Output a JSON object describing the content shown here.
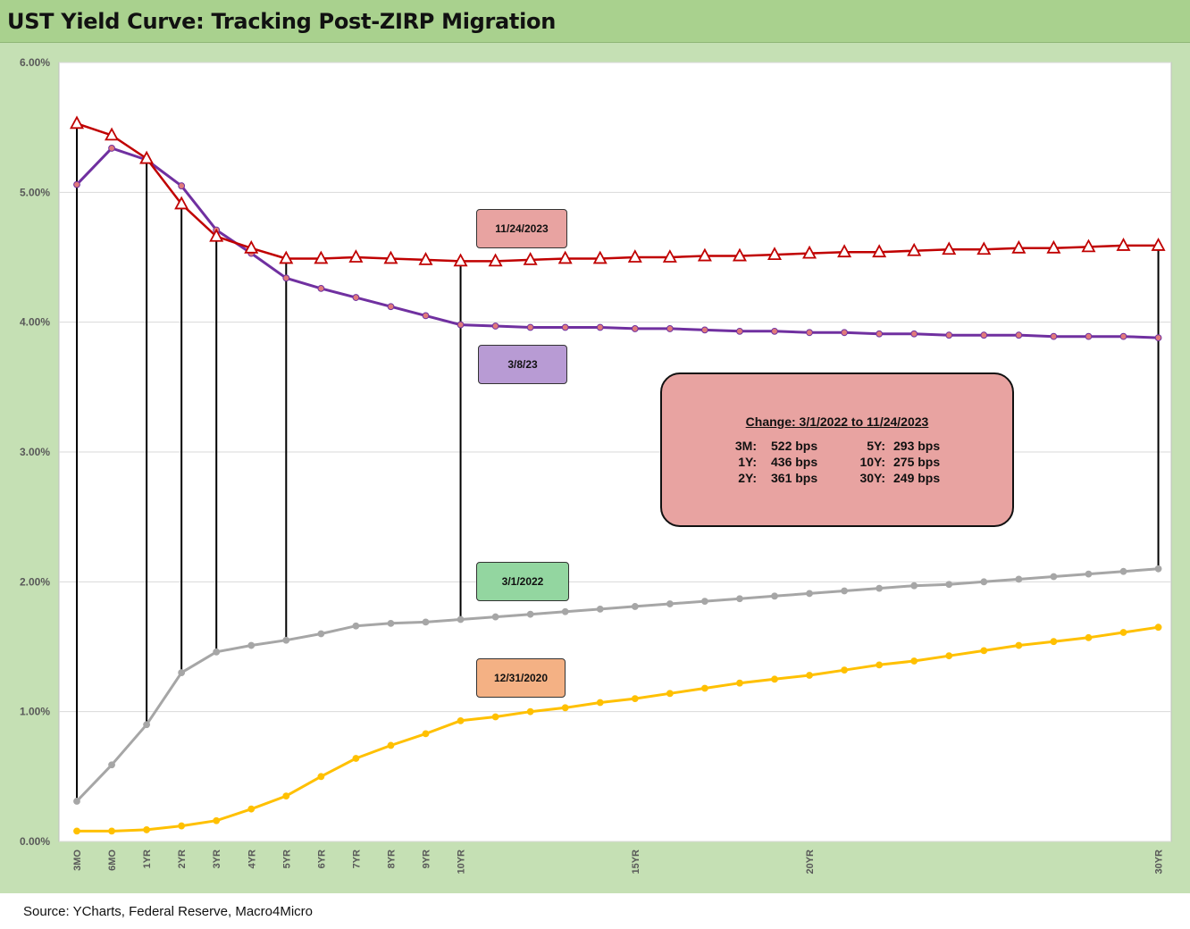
{
  "title": "UST Yield Curve: Tracking Post-ZIRP Migration",
  "source": "Source: YCharts, Federal Reserve, Macro4Micro",
  "chart_data": {
    "type": "line",
    "y_axis": {
      "min": 0,
      "max": 6,
      "ticks": [
        "0.00%",
        "1.00%",
        "2.00%",
        "3.00%",
        "4.00%",
        "5.00%",
        "6.00%"
      ]
    },
    "x_tick_labels": [
      {
        "i": 0,
        "label": "3MO"
      },
      {
        "i": 1,
        "label": "6MO"
      },
      {
        "i": 2,
        "label": "1YR"
      },
      {
        "i": 3,
        "label": "2YR"
      },
      {
        "i": 4,
        "label": "3YR"
      },
      {
        "i": 5,
        "label": "4YR"
      },
      {
        "i": 6,
        "label": "5YR"
      },
      {
        "i": 7,
        "label": "6YR"
      },
      {
        "i": 8,
        "label": "7YR"
      },
      {
        "i": 9,
        "label": "8YR"
      },
      {
        "i": 10,
        "label": "9YR"
      },
      {
        "i": 11,
        "label": "10YR"
      },
      {
        "i": 16,
        "label": "15YR"
      },
      {
        "i": 21,
        "label": "20YR"
      },
      {
        "i": 31,
        "label": "30YR"
      }
    ],
    "grid": true,
    "series": [
      {
        "name": "11/24/2023",
        "color": "#c00000",
        "marker": "triangle",
        "values": [
          5.53,
          5.44,
          5.26,
          4.91,
          4.66,
          4.57,
          4.49,
          4.49,
          4.5,
          4.49,
          4.48,
          4.47,
          4.47,
          4.48,
          4.49,
          4.49,
          4.5,
          4.5,
          4.51,
          4.51,
          4.52,
          4.53,
          4.54,
          4.54,
          4.55,
          4.56,
          4.56,
          4.57,
          4.57,
          4.58,
          4.59,
          4.59
        ]
      },
      {
        "name": "3/8/23",
        "color": "#7030a0",
        "marker": "dot",
        "values": [
          5.06,
          5.34,
          5.25,
          5.05,
          4.71,
          4.53,
          4.34,
          4.26,
          4.19,
          4.12,
          4.05,
          3.98,
          3.97,
          3.96,
          3.96,
          3.96,
          3.95,
          3.95,
          3.94,
          3.93,
          3.93,
          3.92,
          3.92,
          3.91,
          3.91,
          3.9,
          3.9,
          3.9,
          3.89,
          3.89,
          3.89,
          3.88
        ]
      },
      {
        "name": "3/1/2022",
        "color": "#a6a6a6",
        "marker": "dot",
        "values": [
          0.31,
          0.59,
          0.9,
          1.3,
          1.46,
          1.51,
          1.55,
          1.6,
          1.66,
          1.68,
          1.69,
          1.71,
          1.73,
          1.75,
          1.77,
          1.79,
          1.81,
          1.83,
          1.85,
          1.87,
          1.89,
          1.91,
          1.93,
          1.95,
          1.97,
          1.98,
          2.0,
          2.02,
          2.04,
          2.06,
          2.08,
          2.1
        ]
      },
      {
        "name": "12/31/2020",
        "color": "#ffc000",
        "marker": "dot",
        "values": [
          0.08,
          0.08,
          0.09,
          0.12,
          0.16,
          0.25,
          0.35,
          0.5,
          0.64,
          0.74,
          0.83,
          0.93,
          0.96,
          1.0,
          1.03,
          1.07,
          1.1,
          1.14,
          1.18,
          1.22,
          1.25,
          1.28,
          1.32,
          1.36,
          1.39,
          1.43,
          1.47,
          1.51,
          1.54,
          1.57,
          1.61,
          1.65
        ]
      }
    ],
    "connectors": {
      "from_series": "3/1/2022",
      "to_series": "11/24/2023",
      "indices": [
        0,
        2,
        3,
        4,
        6,
        11,
        31
      ]
    }
  },
  "labels": {
    "s2023": {
      "text": "11/24/2023",
      "bg": "#e8a3a1"
    },
    "s2023mar": {
      "text": "3/8/23",
      "bg": "#b89bd4"
    },
    "s2022": {
      "text": "3/1/2022",
      "bg": "#93d6a0"
    },
    "s2020": {
      "text": "12/31/2020",
      "bg": "#f4b184"
    }
  },
  "change_box": {
    "title": "Change: 3/1/2022 to 11/24/2023",
    "rows": [
      {
        "l1": "3M:",
        "v1": "522 bps",
        "l2": "5Y:",
        "v2": "293 bps"
      },
      {
        "l1": "1Y:",
        "v1": "436 bps",
        "l2": "10Y:",
        "v2": "275 bps"
      },
      {
        "l1": "2Y:",
        "v1": "361 bps",
        "l2": "30Y:",
        "v2": "249 bps"
      }
    ]
  }
}
